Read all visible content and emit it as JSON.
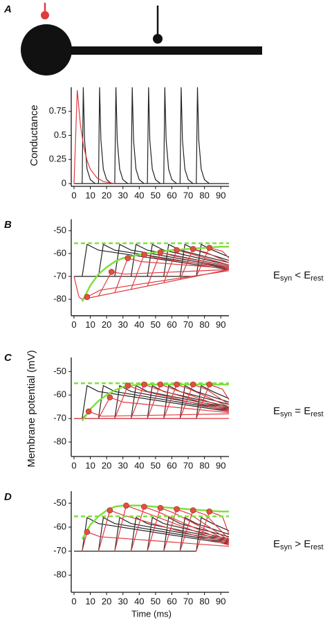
{
  "diagram": {
    "label": "A"
  },
  "chart_data": [
    {
      "type": "line",
      "ylabel": "Conductance",
      "xlim": [
        0,
        95
      ],
      "ylim": [
        0,
        1
      ],
      "xticks": [
        0,
        10,
        20,
        30,
        40,
        50,
        60,
        70,
        80,
        90
      ],
      "yticks": [
        0,
        0.25,
        0.5,
        0.75
      ],
      "series": [
        {
          "color": "#222222",
          "x": [
            0,
            95,
            null,
            5,
            5.7,
            6.5,
            8,
            10,
            13,
            null,
            15,
            15.7,
            16.5,
            18,
            20,
            23,
            null,
            25,
            25.7,
            26.5,
            28,
            30,
            33,
            null,
            35,
            35.7,
            36.5,
            38,
            40,
            43,
            null,
            45,
            45.7,
            46.5,
            48,
            50,
            53,
            null,
            55,
            55.7,
            56.5,
            58,
            60,
            63,
            null,
            65,
            65.7,
            66.5,
            68,
            70,
            73,
            null,
            75,
            75.7,
            76.5,
            78,
            80,
            83
          ],
          "values": [
            0,
            0,
            null,
            0,
            1,
            0.45,
            0.15,
            0.04,
            0,
            null,
            0,
            1,
            0.45,
            0.15,
            0.04,
            0,
            null,
            0,
            1,
            0.45,
            0.15,
            0.04,
            0,
            null,
            0,
            1,
            0.45,
            0.15,
            0.04,
            0,
            null,
            0,
            1,
            0.45,
            0.15,
            0.04,
            0,
            null,
            0,
            1,
            0.45,
            0.15,
            0.04,
            0,
            null,
            0,
            1,
            0.45,
            0.15,
            0.04,
            0,
            null,
            0,
            1,
            0.45,
            0.15,
            0.04,
            0
          ]
        },
        {
          "color": "#e0393e",
          "x": [
            0,
            2,
            4,
            6,
            8,
            10,
            14,
            18,
            25
          ],
          "values": [
            0,
            0.97,
            0.6,
            0.38,
            0.24,
            0.15,
            0.06,
            0.02,
            0
          ]
        }
      ]
    },
    {
      "type": "line",
      "panel_label": "B",
      "annotation": [
        "E",
        "syn",
        " < ",
        "E",
        "rest"
      ],
      "xlim": [
        0,
        95
      ],
      "ylim": [
        -86,
        -45
      ],
      "xticks": [
        0,
        10,
        20,
        30,
        40,
        50,
        60,
        70,
        80,
        90
      ],
      "yticks": [
        -50,
        -60,
        -70,
        -80
      ],
      "series": [
        {
          "color": "#222222",
          "x": [
            0,
            75,
            null,
            5,
            8,
            15,
            95,
            null,
            15,
            18,
            25,
            95,
            null,
            25,
            28,
            35,
            95,
            null,
            35,
            38,
            45,
            95,
            null,
            45,
            48,
            55,
            95,
            null,
            55,
            58,
            65,
            95,
            null,
            65,
            68,
            75,
            95,
            null,
            75,
            78,
            85,
            95
          ],
          "values": [
            -70,
            -70,
            null,
            -70,
            -56,
            -58.5,
            -67,
            null,
            -70,
            -56,
            -58.5,
            -66.5,
            null,
            -70,
            -56,
            -58.5,
            -66,
            null,
            -70,
            -56,
            -58.5,
            -65.5,
            null,
            -70,
            -56,
            -58.5,
            -65,
            null,
            -70,
            -56,
            -58.5,
            -64,
            null,
            -70,
            -56,
            -58.5,
            -63,
            null,
            -70,
            -56,
            -58.5,
            -61.5
          ]
        },
        {
          "color": "#e0393e",
          "x": [
            0,
            3,
            5,
            95,
            null,
            5,
            8,
            16,
            95,
            null,
            15,
            23,
            31,
            95,
            null,
            25,
            33,
            41,
            95,
            null,
            35,
            43,
            51,
            95,
            null,
            45,
            53,
            61,
            95,
            null,
            55,
            63,
            71,
            95,
            null,
            65,
            73,
            81,
            95,
            null,
            75,
            83,
            91,
            95
          ],
          "values": [
            -70,
            -79,
            -80,
            -67,
            null,
            -80,
            -79,
            -76,
            -67.5,
            null,
            -78.6,
            -68,
            -69,
            -67,
            null,
            -77.1,
            -62,
            -63.5,
            -66.5,
            null,
            -75.7,
            -60.5,
            -62,
            -66,
            null,
            -74.2,
            -59.5,
            -61,
            -65.5,
            null,
            -72.8,
            -58.5,
            -60,
            -65,
            null,
            -71.3,
            -58,
            -59.5,
            -64,
            null,
            -69.9,
            -57.5,
            -59,
            -62
          ]
        },
        {
          "color": "#7fe03a",
          "dashed": true,
          "bold": true,
          "x": [
            0,
            95
          ],
          "values": [
            -55.5,
            -55.5
          ]
        },
        {
          "color": "#7fe03a",
          "bold": true,
          "x": [
            5,
            10,
            15,
            20,
            25,
            30,
            40,
            50,
            60,
            70,
            80,
            90,
            95
          ],
          "values": [
            -81,
            -74,
            -69,
            -66,
            -63.5,
            -62,
            -60.5,
            -59.5,
            -58.5,
            -58,
            -57.5,
            -57,
            -57
          ]
        },
        {
          "type": "scatter",
          "color": "#e05040",
          "x": [
            8,
            23,
            33,
            43,
            53,
            63,
            73,
            83
          ],
          "values": [
            -79,
            -68,
            -62,
            -60.5,
            -59.5,
            -58.5,
            -58,
            -57.5
          ]
        }
      ]
    },
    {
      "type": "line",
      "panel_label": "C",
      "ylabel": "Membrane potential (mV)",
      "annotation": [
        "E",
        "syn",
        " = ",
        "E",
        "rest"
      ],
      "xlim": [
        0,
        95
      ],
      "ylim": [
        -85,
        -44
      ],
      "xticks": [
        0,
        10,
        20,
        30,
        40,
        50,
        60,
        70,
        80,
        90
      ],
      "yticks": [
        -50,
        -60,
        -70,
        -80
      ],
      "series": [
        {
          "color": "#222222",
          "x": [
            0,
            75,
            null,
            5,
            8,
            15,
            95,
            null,
            15,
            18,
            25,
            95,
            null,
            25,
            28,
            35,
            95,
            null,
            35,
            38,
            45,
            95,
            null,
            45,
            48,
            55,
            95,
            null,
            55,
            58,
            65,
            95,
            null,
            65,
            68,
            75,
            95,
            null,
            75,
            78,
            85,
            95
          ],
          "values": [
            -70,
            -70,
            null,
            -70,
            -56,
            -58.5,
            -67,
            null,
            -70,
            -56,
            -58.5,
            -66.5,
            null,
            -70,
            -56,
            -58.5,
            -66,
            null,
            -70,
            -56,
            -58.5,
            -65.5,
            null,
            -70,
            -56,
            -58.5,
            -65,
            null,
            -70,
            -56,
            -58.5,
            -64,
            null,
            -70,
            -56,
            -58.5,
            -63,
            null,
            -70,
            -56,
            -58.5,
            -61.5
          ]
        },
        {
          "color": "#e0393e",
          "x": [
            0,
            95,
            null,
            5,
            9,
            17,
            95,
            null,
            15,
            22,
            30,
            95,
            null,
            25,
            33,
            41,
            95,
            null,
            35,
            43,
            51,
            95,
            null,
            45,
            53,
            61,
            95,
            null,
            55,
            63,
            71,
            95,
            null,
            65,
            73,
            81,
            95,
            null,
            75,
            83,
            91,
            95
          ],
          "values": [
            -70,
            -70,
            null,
            -70,
            -67,
            -69,
            -68,
            null,
            -70,
            -61,
            -63,
            -67.5,
            null,
            -70,
            -56,
            -58,
            -67,
            null,
            -70,
            -55.5,
            -57.5,
            -66.5,
            null,
            -70,
            -55.5,
            -57.5,
            -66,
            null,
            -70,
            -55.5,
            -57.5,
            -65,
            null,
            -70,
            -55.5,
            -57.5,
            -64,
            null,
            -70,
            -55.5,
            -57.5,
            -62
          ]
        },
        {
          "color": "#7fe03a",
          "dashed": true,
          "bold": true,
          "x": [
            0,
            95
          ],
          "values": [
            -55,
            -55
          ]
        },
        {
          "color": "#7fe03a",
          "bold": true,
          "x": [
            5,
            10,
            15,
            20,
            25,
            30,
            40,
            95
          ],
          "values": [
            -71,
            -66,
            -62.5,
            -60,
            -58,
            -56.5,
            -55.5,
            -55.5
          ]
        },
        {
          "type": "scatter",
          "color": "#e05040",
          "x": [
            9,
            22,
            33,
            43,
            53,
            63,
            73,
            83
          ],
          "values": [
            -67,
            -61,
            -56,
            -55.5,
            -55.5,
            -55.5,
            -55.5,
            -55.5
          ]
        }
      ]
    },
    {
      "type": "line",
      "panel_label": "D",
      "xlabel": "Time (ms)",
      "annotation": [
        "E",
        "syn",
        " > ",
        "E",
        "rest"
      ],
      "xlim": [
        0,
        95
      ],
      "ylim": [
        -86,
        -45
      ],
      "xticks": [
        0,
        10,
        20,
        30,
        40,
        50,
        60,
        70,
        80,
        90
      ],
      "yticks": [
        -50,
        -60,
        -70,
        -80
      ],
      "series": [
        {
          "color": "#222222",
          "x": [
            0,
            75,
            null,
            5,
            8,
            15,
            95,
            null,
            15,
            18,
            25,
            95,
            null,
            25,
            28,
            35,
            95,
            null,
            35,
            38,
            45,
            95,
            null,
            45,
            48,
            55,
            95,
            null,
            55,
            58,
            65,
            95,
            null,
            65,
            68,
            75,
            95,
            null,
            75,
            78,
            85,
            95
          ],
          "values": [
            -70,
            -70,
            null,
            -70,
            -56,
            -58.5,
            -67,
            null,
            -70,
            -56,
            -58.5,
            -66.5,
            null,
            -70,
            -56,
            -58.5,
            -66,
            null,
            -70,
            -56,
            -58.5,
            -65.5,
            null,
            -70,
            -56,
            -58.5,
            -65,
            null,
            -70,
            -56,
            -58.5,
            -64,
            null,
            -70,
            -56,
            -58.5,
            -63,
            null,
            -70,
            -56,
            -58.5,
            -61.5
          ]
        },
        {
          "color": "#e0393e",
          "x": [
            5,
            8,
            16,
            95,
            null,
            15,
            22,
            30,
            95,
            null,
            25,
            32,
            40,
            95,
            null,
            35,
            43,
            51,
            95,
            null,
            45,
            53,
            61,
            95,
            null,
            55,
            63,
            71,
            95,
            null,
            65,
            73,
            81,
            95,
            null,
            75,
            83,
            91,
            95
          ],
          "values": [
            -70,
            -62,
            -64,
            -68,
            null,
            -70,
            -53,
            -55,
            -67.5,
            null,
            -70,
            -51,
            -53,
            -67,
            null,
            -70,
            -51.5,
            -53.5,
            -66.5,
            null,
            -70,
            -52,
            -54,
            -66,
            null,
            -70,
            -52.5,
            -54.5,
            -65.5,
            null,
            -70,
            -53,
            -55,
            -65,
            null,
            -70,
            -53.5,
            -55.5,
            -63
          ]
        },
        {
          "color": "#7fe03a",
          "dashed": true,
          "bold": true,
          "x": [
            0,
            95
          ],
          "values": [
            -55.5,
            -55.5
          ]
        },
        {
          "color": "#7fe03a",
          "bold": true,
          "x": [
            5,
            10,
            15,
            20,
            25,
            30,
            40,
            50,
            60,
            70,
            80,
            90,
            95
          ],
          "values": [
            -65,
            -59,
            -55.5,
            -53,
            -51.5,
            -51,
            -51,
            -51.5,
            -52,
            -52.5,
            -53,
            -53.5,
            -53.5
          ]
        },
        {
          "type": "scatter",
          "color": "#e05040",
          "x": [
            8,
            22,
            32,
            43,
            53,
            63,
            73,
            83
          ],
          "values": [
            -62,
            -53,
            -51,
            -51.5,
            -52,
            -52.5,
            -53,
            -53.5
          ]
        }
      ]
    }
  ]
}
